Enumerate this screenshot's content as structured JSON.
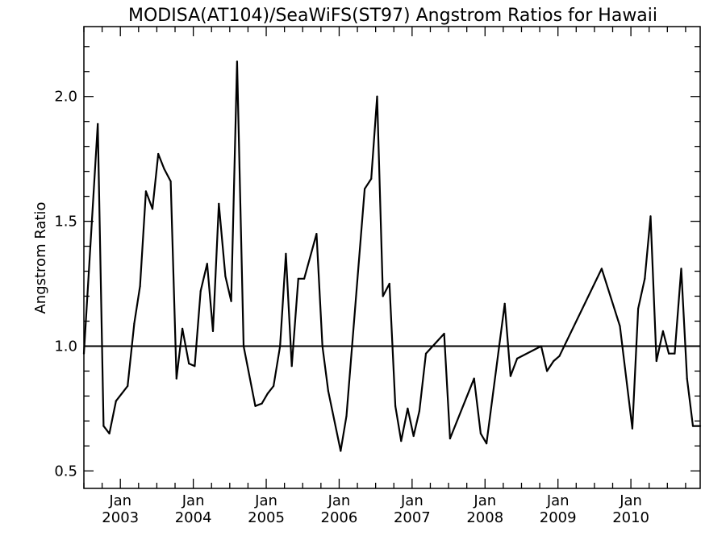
{
  "chart_data": {
    "type": "line",
    "title": "MODISA(AT104)/SeaWiFS(ST97)  Angstrom Ratios for Hawaii",
    "xlabel": "",
    "ylabel": "Angstrom Ratio",
    "x_unit": "decimal year",
    "xlim": [
      2002.5,
      2010.95
    ],
    "ylim": [
      0.43,
      2.28
    ],
    "yticks": [
      {
        "value": 0.5,
        "label": "0.5"
      },
      {
        "value": 1.0,
        "label": "1.0"
      },
      {
        "value": 1.5,
        "label": "1.5"
      },
      {
        "value": 2.0,
        "label": "2.0"
      }
    ],
    "xticks": [
      {
        "value": 2003,
        "month": "Jan",
        "year": "2003"
      },
      {
        "value": 2004,
        "month": "Jan",
        "year": "2004"
      },
      {
        "value": 2005,
        "month": "Jan",
        "year": "2005"
      },
      {
        "value": 2006,
        "month": "Jan",
        "year": "2006"
      },
      {
        "value": 2007,
        "month": "Jan",
        "year": "2007"
      },
      {
        "value": 2008,
        "month": "Jan",
        "year": "2008"
      },
      {
        "value": 2009,
        "month": "Jan",
        "year": "2009"
      },
      {
        "value": 2010,
        "month": "Jan",
        "year": "2010"
      }
    ],
    "reference_line": 1.0,
    "grid": false,
    "series": [
      {
        "name": "",
        "color": "#000000",
        "x": [
          2002.5,
          2002.69,
          2002.77,
          2002.85,
          2002.94,
          2003.02,
          2003.1,
          2003.19,
          2003.27,
          2003.35,
          2003.44,
          2003.52,
          2003.6,
          2003.69,
          2003.77,
          2003.85,
          2003.94,
          2004.02,
          2004.1,
          2004.19,
          2004.27,
          2004.35,
          2004.44,
          2004.52,
          2004.6,
          2004.69,
          2004.85,
          2004.94,
          2005.02,
          2005.1,
          2005.19,
          2005.27,
          2005.35,
          2005.44,
          2005.52,
          2005.69,
          2005.77,
          2005.85,
          2006.02,
          2006.1,
          2006.35,
          2006.44,
          2006.52,
          2006.6,
          2006.69,
          2006.77,
          2006.85,
          2006.94,
          2007.02,
          2007.1,
          2007.19,
          2007.44,
          2007.52,
          2007.85,
          2007.94,
          2008.02,
          2008.27,
          2008.35,
          2008.44,
          2008.77,
          2008.85,
          2008.94,
          2009.02,
          2009.6,
          2009.85,
          2010.02,
          2010.1,
          2010.19,
          2010.27,
          2010.35,
          2010.44,
          2010.52,
          2010.6,
          2010.69,
          2010.77,
          2010.85,
          2010.95
        ],
        "y": [
          0.97,
          1.89,
          0.68,
          0.65,
          0.78,
          0.81,
          0.84,
          1.09,
          1.24,
          1.62,
          1.55,
          1.77,
          1.71,
          1.66,
          0.87,
          1.07,
          0.93,
          0.92,
          1.22,
          1.33,
          1.06,
          1.57,
          1.28,
          1.18,
          2.14,
          1.0,
          0.76,
          0.77,
          0.81,
          0.84,
          1.0,
          1.37,
          0.92,
          1.27,
          1.27,
          1.45,
          1.0,
          0.82,
          0.58,
          0.72,
          1.63,
          1.67,
          2.0,
          1.2,
          1.25,
          0.76,
          0.62,
          0.75,
          0.64,
          0.74,
          0.97,
          1.05,
          0.63,
          0.87,
          0.65,
          0.61,
          1.17,
          0.88,
          0.95,
          1.0,
          0.9,
          0.94,
          0.96,
          1.31,
          1.08,
          0.67,
          1.15,
          1.27,
          1.52,
          0.94,
          1.06,
          0.97,
          0.97,
          1.31,
          0.87,
          0.68,
          0.68
        ]
      }
    ]
  }
}
